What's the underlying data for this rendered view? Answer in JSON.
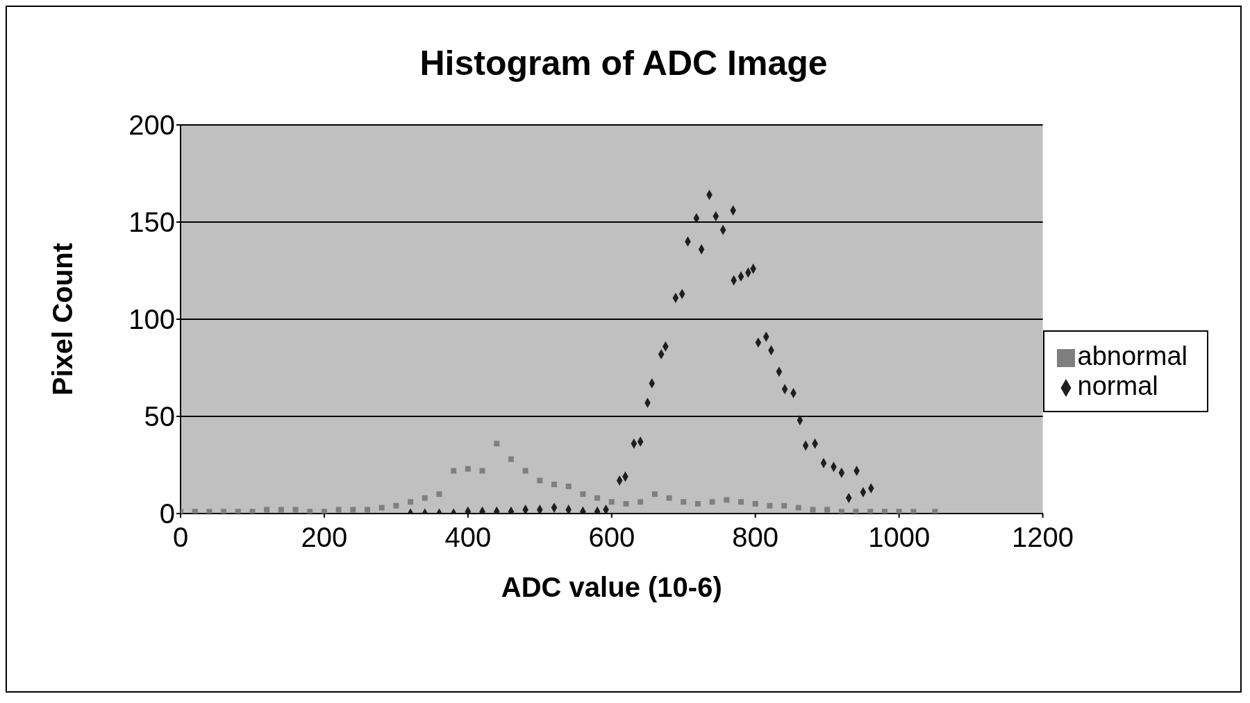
{
  "chart_data": {
    "type": "scatter",
    "title": "Histogram of ADC Image",
    "xlabel": "ADC value  (10-6)",
    "ylabel": "Pixel Count",
    "xlim": [
      0,
      1200
    ],
    "xticks": [
      0,
      200,
      400,
      600,
      800,
      1000,
      1200
    ],
    "ylim": [
      0,
      200
    ],
    "yticks": [
      0,
      50,
      100,
      150,
      200
    ],
    "grid": "y",
    "legend": "right",
    "series": [
      {
        "name": "normal",
        "color": "#1e1e1e",
        "marker": "diamond",
        "x": [
          320,
          340,
          360,
          380,
          400,
          420,
          440,
          460,
          480,
          500,
          520,
          540,
          560,
          580,
          592,
          611,
          619,
          631,
          640,
          650,
          656,
          669,
          675,
          689,
          698,
          706,
          718,
          725,
          736,
          745,
          755,
          769,
          770,
          780,
          790,
          797,
          804,
          815,
          822,
          833,
          841,
          853,
          862,
          870,
          883,
          895,
          909,
          920,
          930,
          941,
          950,
          961
        ],
        "values": [
          0,
          0,
          0,
          0,
          1,
          1,
          1,
          1,
          2,
          2,
          3,
          2,
          1,
          1,
          2,
          17,
          19,
          36,
          37,
          57,
          67,
          82,
          86,
          111,
          113,
          140,
          152,
          136,
          164,
          153,
          146,
          156,
          120,
          122,
          124,
          126,
          88,
          91,
          84,
          73,
          64,
          62,
          48,
          35,
          36,
          26,
          24,
          21,
          8,
          22,
          11,
          13
        ]
      },
      {
        "name": "abnormal",
        "color": "#7f7f7f",
        "marker": "square",
        "x": [
          0,
          20,
          40,
          60,
          80,
          100,
          120,
          140,
          160,
          180,
          200,
          220,
          240,
          260,
          280,
          300,
          320,
          340,
          360,
          380,
          400,
          420,
          440,
          460,
          480,
          500,
          520,
          540,
          560,
          580,
          600,
          620,
          640,
          660,
          680,
          700,
          720,
          740,
          760,
          780,
          800,
          820,
          840,
          860,
          880,
          900,
          920,
          940,
          960,
          980,
          1000,
          1020,
          1050
        ],
        "values": [
          1,
          1,
          1,
          1,
          1,
          1,
          2,
          2,
          2,
          1,
          1,
          2,
          2,
          2,
          3,
          4,
          6,
          8,
          10,
          22,
          23,
          22,
          36,
          28,
          22,
          17,
          15,
          14,
          10,
          8,
          6,
          5,
          6,
          10,
          8,
          6,
          5,
          6,
          7,
          6,
          5,
          4,
          4,
          3,
          2,
          2,
          1,
          1,
          1,
          1,
          1,
          1,
          1
        ]
      }
    ]
  }
}
